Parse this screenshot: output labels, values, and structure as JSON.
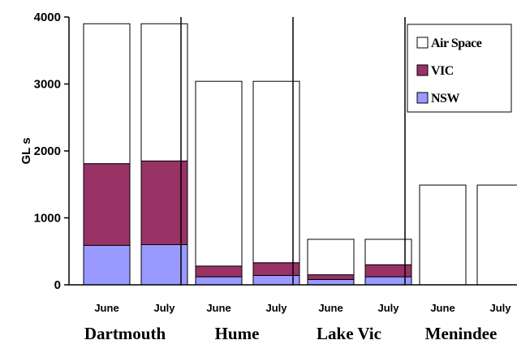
{
  "chart_data": {
    "type": "bar",
    "stacked": true,
    "ylabel": "GL s",
    "ylim": [
      0,
      4000
    ],
    "yticks": [
      0,
      1000,
      2000,
      3000,
      4000
    ],
    "groups": [
      {
        "label": "Dartmouth",
        "months": [
          "June",
          "July"
        ]
      },
      {
        "label": "Hume",
        "months": [
          "June",
          "July"
        ]
      },
      {
        "label": "Lake Vic",
        "months": [
          "June",
          "July"
        ]
      },
      {
        "label": "Menindee",
        "months": [
          "June",
          "July"
        ]
      }
    ],
    "categories": [
      "June",
      "July",
      "June",
      "July",
      "June",
      "July",
      "June",
      "July"
    ],
    "series": [
      {
        "name": "NSW",
        "color": "#9999ff",
        "values": [
          590,
          600,
          120,
          140,
          80,
          120,
          0,
          0
        ]
      },
      {
        "name": "VIC",
        "color": "#993366",
        "values": [
          1220,
          1250,
          160,
          190,
          70,
          180,
          0,
          0
        ]
      },
      {
        "name": "Air Space",
        "color": "#ffffff",
        "values": [
          2090,
          2050,
          2760,
          2710,
          530,
          380,
          1490,
          1490
        ]
      }
    ],
    "legend": {
      "position": "top-right",
      "order": [
        "Air Space",
        "VIC",
        "NSW"
      ]
    },
    "grid": false
  }
}
